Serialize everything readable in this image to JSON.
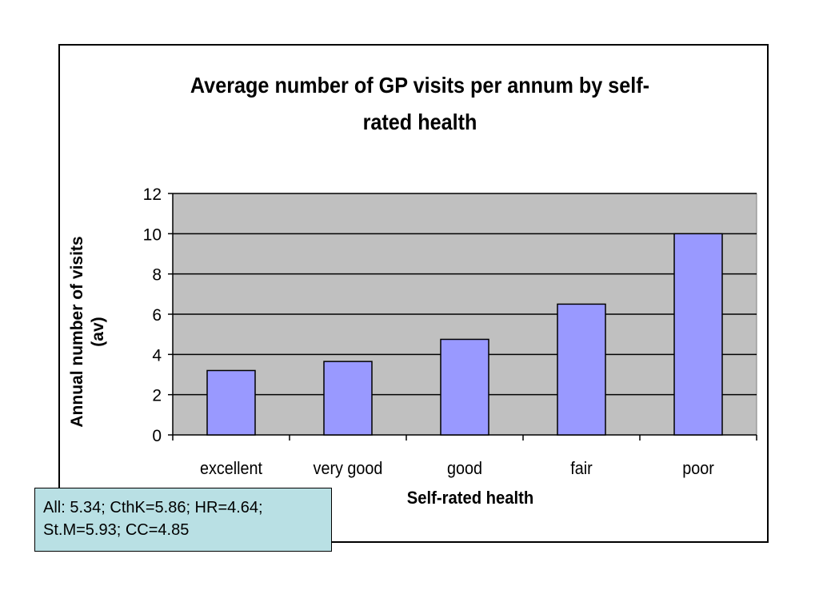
{
  "chart_data": {
    "type": "bar",
    "title": "Average number of GP visits per annum by self-rated health",
    "title_lines": [
      "Average number of GP visits per annum by self-",
      "rated health"
    ],
    "xlabel": "Self-rated health",
    "ylabel_lines": [
      "Annual number of visits",
      "(av)"
    ],
    "categories": [
      "excellent",
      "very good",
      "good",
      "fair",
      "poor"
    ],
    "values": [
      3.2,
      3.65,
      4.75,
      6.5,
      10.0
    ],
    "ylim": [
      0,
      12
    ],
    "yticks": [
      0,
      2,
      4,
      6,
      8,
      10,
      12
    ],
    "grid": true,
    "colors": {
      "bar": "#9999ff",
      "plot_bg": "#c0c0c0",
      "grid": "#000000"
    }
  },
  "note": {
    "lines": [
      "All: 5.34; CthK=5.86; HR=4.64;",
      "St.M=5.93; CC=4.85"
    ]
  }
}
